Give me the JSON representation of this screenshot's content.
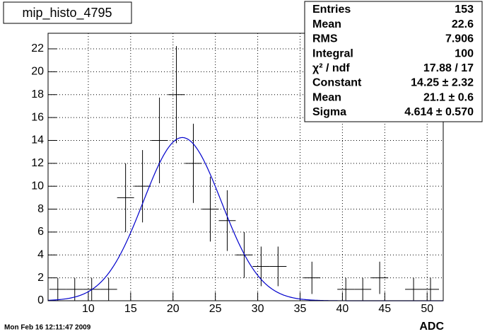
{
  "chart_data": {
    "type": "histogram",
    "title": "mip_histo_4795",
    "xlabel": "ADC",
    "timestamp": "Mon Feb 16 12:11:47 2009",
    "bins": [
      5.4,
      7.4,
      9.4,
      11.4,
      13.4,
      15.4,
      17.4,
      19.4,
      21.4,
      23.4,
      25.4,
      27.4,
      29.4,
      31.4,
      33.4,
      35.4,
      37.4,
      39.4,
      41.4,
      43.4,
      45.4,
      47.4,
      49.4,
      51.4
    ],
    "values": [
      1,
      1,
      1,
      1,
      9,
      10,
      14,
      18,
      12,
      8,
      7,
      4,
      3,
      3,
      0,
      2,
      0,
      1,
      1,
      2,
      0,
      1,
      1
    ],
    "errors": [
      1,
      1,
      1,
      1,
      3,
      3.16,
      3.74,
      4.24,
      3.46,
      2.83,
      2.65,
      2,
      1.73,
      1.73,
      0,
      1.41,
      0,
      1,
      1,
      1.41,
      0,
      1,
      1
    ],
    "color": "#000000",
    "fit": {
      "constant": 14.25,
      "mean": 21.1,
      "sigma": 4.614,
      "color": "#0000cc"
    },
    "xlim": [
      5.25,
      51.9
    ],
    "ylim": [
      0,
      23.36
    ],
    "xticks": [
      10,
      15,
      20,
      25,
      30,
      35,
      40,
      45,
      50
    ],
    "yticks": [
      0,
      2,
      4,
      6,
      8,
      10,
      12,
      14,
      16,
      18,
      20,
      22
    ],
    "grid": true,
    "stats": [
      [
        "Entries",
        "153"
      ],
      [
        "Mean",
        "22.6"
      ],
      [
        "RMS",
        "7.906"
      ],
      [
        "Integral",
        "100"
      ],
      [
        "χ² / ndf",
        "17.88 / 17"
      ],
      [
        "Constant",
        "14.25 ± 2.32"
      ],
      [
        "Mean",
        "21.1 ± 0.6"
      ],
      [
        "Sigma",
        "4.614 ± 0.570"
      ]
    ]
  }
}
